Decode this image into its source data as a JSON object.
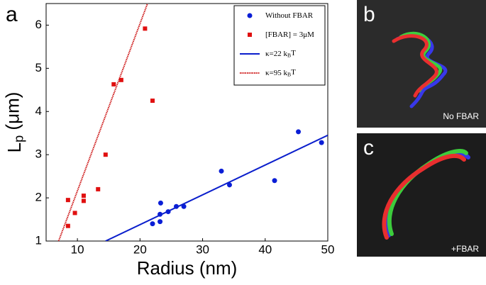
{
  "chart_data": {
    "type": "scatter",
    "xlabel": "Radius (nm)",
    "ylabel": [
      "L",
      "p",
      " (μm)"
    ],
    "xlim": [
      5,
      50
    ],
    "xticks": [
      10,
      20,
      30,
      40,
      50
    ],
    "ylim": [
      1,
      6.5
    ],
    "yticks": [
      1,
      2,
      3,
      4,
      5,
      6
    ],
    "series": [
      {
        "name": [
          "Without FBAR"
        ],
        "color": "#0a1ed6",
        "marker": "circle",
        "x": [
          22,
          23.2,
          23.2,
          23.3,
          24.5,
          25.8,
          27,
          33,
          34.3,
          41.5,
          45.3,
          49
        ],
        "values": [
          1.4,
          1.45,
          1.62,
          1.88,
          1.68,
          1.8,
          1.8,
          2.62,
          2.3,
          2.4,
          3.53,
          3.28
        ]
      },
      {
        "name": [
          "[FBAR] = 3μM"
        ],
        "color": "#e01010",
        "marker": "square",
        "x": [
          8.5,
          8.5,
          9.6,
          11,
          11,
          13.3,
          14.5,
          15.8,
          17,
          20.8,
          22
        ],
        "values": [
          1.35,
          1.95,
          1.65,
          2.05,
          1.93,
          2.2,
          3.0,
          4.63,
          4.73,
          5.92,
          4.25
        ]
      },
      {
        "name": [
          "κ=22 k",
          "B",
          "T"
        ],
        "color": "#0a1ecc",
        "marker": "line",
        "x": [
          14.5,
          50
        ],
        "values": [
          1,
          3.45
        ]
      },
      {
        "name": [
          "κ=95 k",
          "B",
          "T"
        ],
        "color": "#cc1010",
        "marker": "dotted-line",
        "x": [
          7,
          21.2
        ],
        "values": [
          1,
          6.5
        ]
      }
    ]
  },
  "panels": {
    "a": "a",
    "b": "b",
    "c": "c",
    "b_caption": "No FBAR",
    "c_caption": "+FBAR"
  }
}
